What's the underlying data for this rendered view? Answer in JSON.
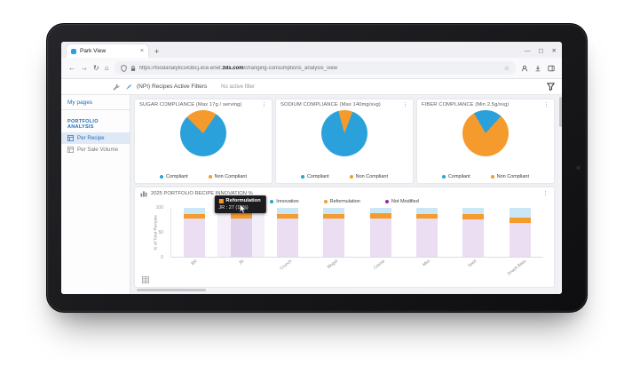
{
  "colors": {
    "blue": "#2BA1DC",
    "orange": "#F59B2D",
    "purple": "#9C27B0",
    "lavender": "#EBDDF2",
    "lavender_hover": "#E0D2EA",
    "lightblue": "#CBE7F6",
    "link_blue": "#1E6FB8"
  },
  "icons": {
    "kebab": "⋮",
    "star": "☆",
    "new_tab": "+",
    "tab_close": "×"
  },
  "browser": {
    "tab_title": "Park View",
    "window_controls": {
      "minimize": "—",
      "maximize": "▢",
      "close": "✕"
    },
    "nav": {
      "back": "←",
      "forward": "→",
      "reload": "↻",
      "home": "⌂"
    },
    "address": {
      "url_pre": "https://foodanalytics43bcj.ece.enet.",
      "url_bold": "3ds.com",
      "url_post": "/changing-consumptions_analysis_view"
    }
  },
  "app": {
    "toolbar": {
      "title": "(NPI) Recipes Active Filters",
      "status": "No active filter"
    },
    "sidebar": {
      "my_pages": "My pages",
      "section_title": "PORTFOLIO ANALYSIS",
      "items": [
        {
          "label": "Per Recipe",
          "selected": true
        },
        {
          "label": "Per Sale Volume",
          "selected": false
        }
      ]
    }
  },
  "chart_data": [
    {
      "type": "pie",
      "title": "SUGAR COMPLIANCE (Max 17g / serving)",
      "labels": [
        "Compliant",
        "Non Compliant"
      ],
      "values": [
        78,
        22
      ],
      "colors": [
        "#2BA1DC",
        "#F59B2D"
      ],
      "start_deg": 34,
      "legend_position": "bottom"
    },
    {
      "type": "pie",
      "title": "SODIUM COMPLIANCE (Max 140mg/svg)",
      "labels": [
        "Compliant",
        "Non Compliant"
      ],
      "values": [
        90,
        10
      ],
      "colors": [
        "#2BA1DC",
        "#F59B2D"
      ],
      "start_deg": 21,
      "legend_position": "bottom"
    },
    {
      "type": "pie",
      "title": "FIBER COMPLIANCE (Min 2.5g/svg)",
      "labels": [
        "Compliant",
        "Non Compliant"
      ],
      "values": [
        20,
        80
      ],
      "colors": [
        "#2BA1DC",
        "#F59B2D"
      ],
      "start_deg": -30,
      "legend_position": "bottom"
    },
    {
      "type": "bar",
      "stacked": true,
      "title": "2025 PORTFOLIO RECIPE INNOVATION %",
      "ylabel": "% of Total Recipes",
      "ylim": [
        0,
        100
      ],
      "yticks": [
        100,
        50,
        0
      ],
      "legend_position": "top",
      "categories": [
        "BR",
        "JR",
        "Crunch",
        "Mogul",
        "Creme",
        "Mini",
        "Swirl",
        "Snack Bites"
      ],
      "series": [
        {
          "name": "Innovation",
          "color": "#2BA1DC",
          "bar_fill": "#CBE7F6",
          "values": [
            12,
            11,
            13,
            12,
            11,
            12,
            13,
            20
          ]
        },
        {
          "name": "Reformulation",
          "color": "#F59B2D",
          "bar_fill": "#F59B2D",
          "values": [
            10,
            11,
            9,
            10,
            10,
            9,
            10,
            10
          ]
        },
        {
          "name": "Not Modified",
          "color": "#9C27B0",
          "bar_fill": "#EBDDF2",
          "values": [
            78,
            78,
            78,
            78,
            79,
            79,
            77,
            70
          ]
        }
      ],
      "tooltip": {
        "category_index": 1,
        "series": "Reformulation",
        "value_text": "JR : 27 (11%)"
      }
    }
  ]
}
